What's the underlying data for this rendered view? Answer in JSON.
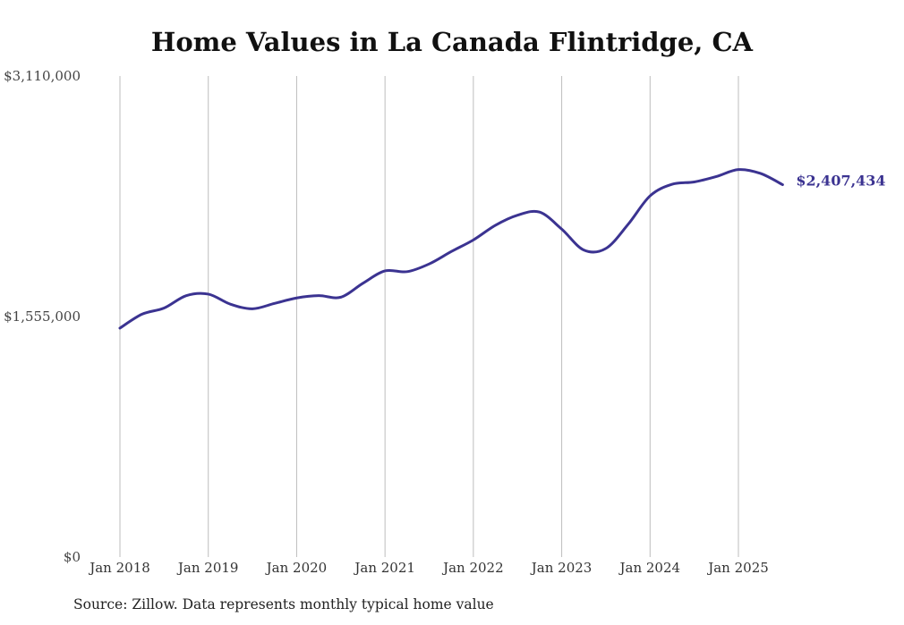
{
  "chart_data": {
    "type": "line",
    "title": "Home Values in La Canada Flintridge, CA",
    "xlabel": "",
    "ylabel": "",
    "ylim": [
      0,
      3110000
    ],
    "y_ticks": [
      {
        "value": 3110000,
        "label": "$3,110,000"
      },
      {
        "value": 1555000,
        "label": "$1,555,000"
      },
      {
        "value": 0,
        "label": "$0"
      }
    ],
    "x_ticks": [
      {
        "date": "2018-01",
        "label": "Jan 2018"
      },
      {
        "date": "2019-01",
        "label": "Jan 2019"
      },
      {
        "date": "2020-01",
        "label": "Jan 2020"
      },
      {
        "date": "2021-01",
        "label": "Jan 2021"
      },
      {
        "date": "2022-01",
        "label": "Jan 2022"
      },
      {
        "date": "2023-01",
        "label": "Jan 2023"
      },
      {
        "date": "2024-01",
        "label": "Jan 2024"
      },
      {
        "date": "2025-01",
        "label": "Jan 2025"
      }
    ],
    "grid": "vertical",
    "legend": "none",
    "series": [
      {
        "color": "#3b3391",
        "end_label": "$2,407,434",
        "points": [
          {
            "x": "2018-01",
            "y": 1480000
          },
          {
            "x": "2018-04",
            "y": 1570000
          },
          {
            "x": "2018-07",
            "y": 1610000
          },
          {
            "x": "2018-10",
            "y": 1690000
          },
          {
            "x": "2019-01",
            "y": 1700000
          },
          {
            "x": "2019-04",
            "y": 1635000
          },
          {
            "x": "2019-07",
            "y": 1605000
          },
          {
            "x": "2019-10",
            "y": 1640000
          },
          {
            "x": "2020-01",
            "y": 1675000
          },
          {
            "x": "2020-04",
            "y": 1690000
          },
          {
            "x": "2020-07",
            "y": 1680000
          },
          {
            "x": "2020-10",
            "y": 1770000
          },
          {
            "x": "2021-01",
            "y": 1850000
          },
          {
            "x": "2021-04",
            "y": 1845000
          },
          {
            "x": "2021-07",
            "y": 1895000
          },
          {
            "x": "2021-10",
            "y": 1975000
          },
          {
            "x": "2022-01",
            "y": 2050000
          },
          {
            "x": "2022-04",
            "y": 2145000
          },
          {
            "x": "2022-07",
            "y": 2210000
          },
          {
            "x": "2022-10",
            "y": 2230000
          },
          {
            "x": "2023-01",
            "y": 2120000
          },
          {
            "x": "2023-04",
            "y": 1985000
          },
          {
            "x": "2023-07",
            "y": 1995000
          },
          {
            "x": "2023-10",
            "y": 2150000
          },
          {
            "x": "2024-01",
            "y": 2335000
          },
          {
            "x": "2024-04",
            "y": 2410000
          },
          {
            "x": "2024-07",
            "y": 2425000
          },
          {
            "x": "2024-10",
            "y": 2460000
          },
          {
            "x": "2025-01",
            "y": 2505000
          },
          {
            "x": "2025-04",
            "y": 2480000
          },
          {
            "x": "2025-07",
            "y": 2407434
          }
        ]
      }
    ]
  },
  "footer": {
    "source": "Source: Zillow. Data represents monthly typical home value"
  }
}
